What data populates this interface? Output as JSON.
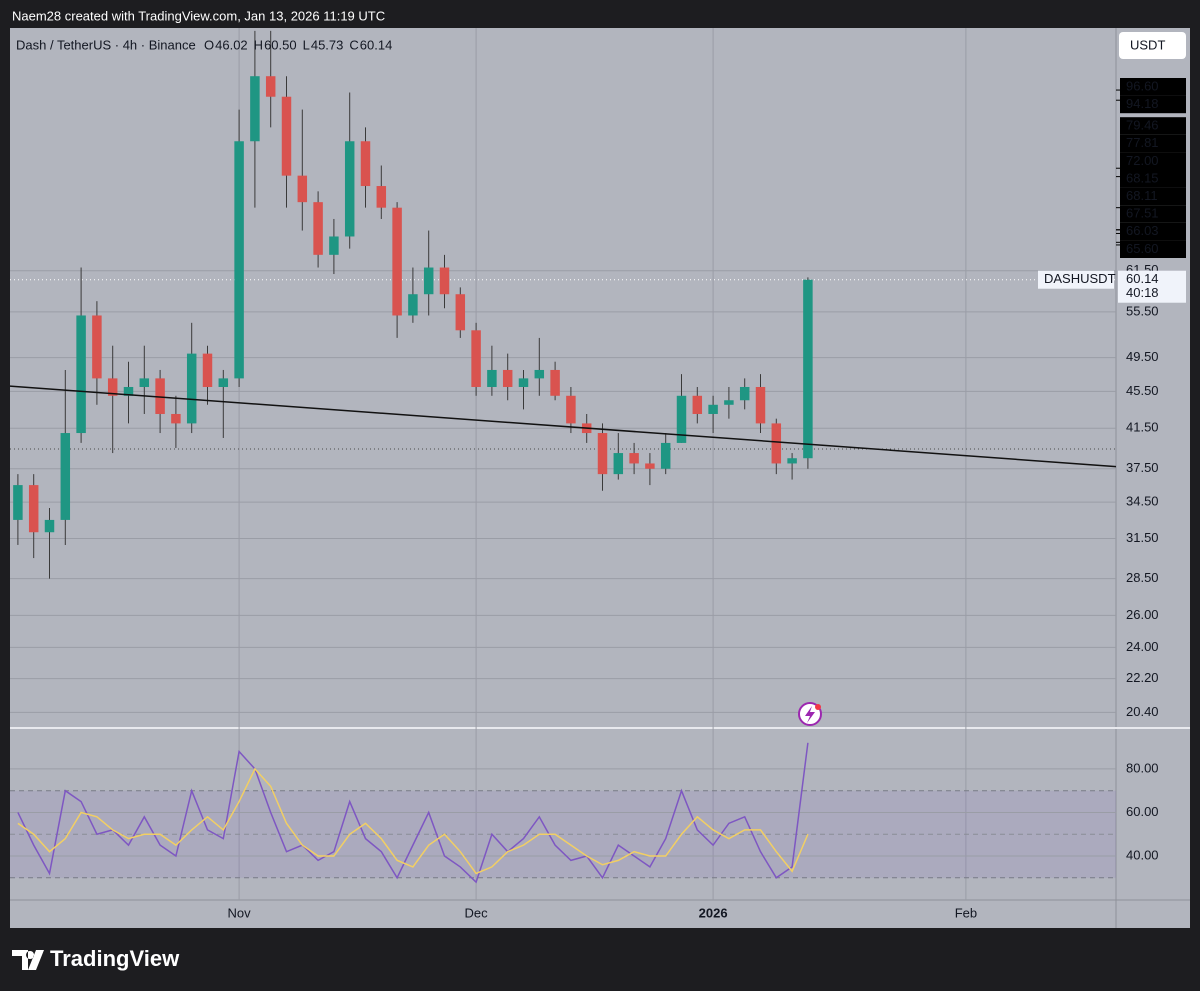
{
  "header": "Naem28 created with TradingView.com, Jan 13, 2026 11:19 UTC",
  "brand": "TradingView",
  "currency": "USDT",
  "chart_data": [
    {
      "type": "candlestick",
      "title": "Dash / TetherUS · 4h · Binance",
      "ohlc_prefixes": [
        "O",
        "H",
        "L",
        "C"
      ],
      "ohlc_values": [
        46.02,
        {
          "value": 60.5,
          "label": "60.50"
        },
        45.73,
        60.14
      ],
      "categories": [
        null,
        null,
        null,
        null,
        null,
        null,
        null,
        null,
        null,
        null,
        null,
        null,
        null,
        null,
        "Nov",
        null,
        null,
        null,
        null,
        null,
        null,
        null,
        null,
        null,
        null,
        null,
        null,
        null,
        null,
        "Dec",
        null,
        null,
        null,
        null,
        null,
        null,
        null,
        null,
        null,
        null,
        null,
        null,
        null,
        null,
        "2026",
        null,
        null,
        null,
        null,
        null,
        null,
        null,
        null,
        null,
        null,
        null,
        null,
        null,
        null,
        null,
        "Feb",
        null,
        null,
        null,
        null,
        null,
        null,
        null,
        null,
        null
      ],
      "open": [
        33,
        36,
        32,
        33,
        41,
        55,
        47,
        45,
        46,
        47,
        43,
        42,
        50,
        46,
        47,
        85,
        100,
        95,
        78,
        73,
        64,
        67,
        85,
        76,
        72,
        55,
        58,
        62,
        58,
        53,
        46,
        48,
        46,
        47,
        48,
        45,
        42,
        41,
        37,
        39,
        38,
        37.5,
        40,
        45,
        43,
        44,
        44.5,
        46,
        42,
        38,
        38.5,
        null,
        null,
        null,
        null,
        null,
        null,
        null,
        null,
        null,
        null,
        null,
        null,
        null,
        null,
        null,
        null,
        null,
        null,
        null
      ],
      "high": [
        37,
        37,
        34,
        48,
        62,
        57,
        51,
        49,
        51,
        48,
        45,
        54,
        51,
        48,
        92,
        112,
        112,
        100,
        92,
        75,
        70,
        96,
        88,
        80,
        73,
        62,
        68,
        64,
        59,
        54,
        51,
        50,
        48,
        52,
        49,
        46,
        43,
        42,
        41,
        40,
        39,
        41,
        47.5,
        46,
        45,
        46,
        47,
        47.5,
        42.5,
        39,
        60.5,
        null,
        null,
        null,
        null,
        null,
        null,
        null,
        null,
        null,
        null,
        null,
        null,
        null,
        null,
        null,
        null,
        null,
        null,
        null
      ],
      "low": [
        31,
        30,
        28.5,
        31,
        40,
        44,
        39,
        42,
        43,
        41,
        39.5,
        41,
        44,
        40.5,
        46,
        72,
        88,
        72,
        68,
        62,
        61,
        65,
        72,
        70,
        52,
        54,
        55,
        56,
        52,
        45,
        45,
        44.5,
        43.5,
        45,
        44.5,
        41,
        40,
        35.5,
        36.5,
        37,
        36,
        37,
        40,
        42,
        41,
        42.5,
        43.5,
        41,
        37,
        36.5,
        37.5,
        null,
        null,
        null,
        null,
        null,
        null,
        null,
        null,
        null,
        null,
        null,
        null,
        null,
        null,
        null,
        null,
        null,
        null,
        null
      ],
      "close": [
        36,
        32,
        33,
        41,
        55,
        47,
        45,
        46,
        47,
        43,
        42,
        50,
        46,
        47,
        85,
        100,
        95,
        78,
        73,
        64,
        67,
        85,
        76,
        72,
        55,
        58,
        62,
        58,
        53,
        46,
        48,
        46,
        47,
        48,
        45,
        42,
        41,
        37,
        39,
        38,
        37.5,
        40,
        45,
        43,
        44,
        44.5,
        46,
        42,
        38,
        38.5,
        60.14,
        null,
        null,
        null,
        null,
        null,
        null,
        null,
        null,
        null,
        null,
        null,
        null,
        null,
        null,
        null,
        null,
        null,
        null,
        null
      ],
      "up_color": "#1f9683",
      "down_color": "#d9534f",
      "wick_color": "#3a3a3a",
      "log_scale": true,
      "grid": true,
      "ylim": [
        19.67,
        112.8
      ],
      "yticks": [
        {
          "value": 61.5,
          "label": "61.50"
        },
        {
          "value": 55.5,
          "label": "55.50"
        },
        {
          "value": 49.5,
          "label": "49.50"
        },
        {
          "value": 45.5,
          "label": "45.50"
        },
        {
          "value": 41.5,
          "label": "41.50"
        },
        {
          "value": 37.5,
          "label": "37.50"
        },
        {
          "value": 34.5,
          "label": "34.50"
        },
        {
          "value": 31.5,
          "label": "31.50"
        },
        {
          "value": 28.5,
          "label": "28.50"
        },
        {
          "value": 26,
          "label": "26.00"
        },
        {
          "value": 24,
          "label": "24.00"
        },
        {
          "value": 22.2,
          "label": "22.20"
        },
        {
          "value": 20.4,
          "label": "20.40"
        }
      ],
      "scale_labels": [
        {
          "value": 96.6,
          "label": "96.60"
        },
        {
          "value": 94.18,
          "label": "94.18"
        },
        {
          "value": 79.46,
          "label": "79.46"
        },
        {
          "value": 77.81,
          "label": "77.81"
        },
        {
          "value": 72,
          "label": "72.00"
        },
        {
          "value": 68.15,
          "label": "68.15"
        },
        {
          "value": 68.11,
          "label": "68.11"
        },
        {
          "value": 67.51,
          "label": "67.51"
        },
        {
          "value": 66.03,
          "label": "66.03"
        },
        {
          "value": 65.6,
          "label": "65.60"
        }
      ],
      "last_price": {
        "symbol": "DASHUSDT",
        "value": 60.14,
        "countdown": "40:18"
      },
      "reference_line": 39.4,
      "trendline": [
        46.1,
        37.7
      ],
      "trendline_color": "#111111"
    },
    {
      "type": "line",
      "series": [
        {
          "color": "#7e57c2",
          "values": [
            60,
            45,
            32,
            70,
            65,
            50,
            52,
            45,
            58,
            45,
            40,
            70,
            52,
            48,
            88,
            80,
            60,
            42,
            45,
            38,
            42,
            65,
            48,
            42,
            30,
            45,
            60,
            40,
            35,
            28,
            50,
            42,
            48,
            58,
            45,
            38,
            40,
            30,
            45,
            40,
            35,
            48,
            70,
            52,
            45,
            55,
            58,
            42,
            30,
            35,
            92,
            null,
            null,
            null,
            null,
            null,
            null,
            null,
            null,
            null,
            null,
            null,
            null,
            null,
            null,
            null,
            null,
            null,
            null,
            null
          ]
        },
        {
          "color": "#f2cf63",
          "values": [
            55,
            50,
            42,
            48,
            60,
            58,
            52,
            48,
            50,
            50,
            45,
            52,
            58,
            52,
            65,
            80,
            72,
            55,
            45,
            40,
            40,
            50,
            55,
            48,
            38,
            35,
            45,
            50,
            42,
            32,
            35,
            42,
            45,
            50,
            50,
            45,
            40,
            36,
            38,
            42,
            40,
            40,
            50,
            58,
            52,
            48,
            52,
            52,
            42,
            33,
            50,
            null,
            null,
            null,
            null,
            null,
            null,
            null,
            null,
            null,
            null,
            null,
            null,
            null,
            null,
            null,
            null,
            null,
            null,
            null
          ]
        }
      ],
      "ylim": [
        19.8,
        98.8
      ],
      "yticks": [
        {
          "value": 80,
          "label": "80.00"
        },
        {
          "value": 60,
          "label": "60.00"
        },
        {
          "value": 40,
          "label": "40.00"
        }
      ],
      "bands": [
        70,
        30
      ],
      "midline": 50
    }
  ]
}
